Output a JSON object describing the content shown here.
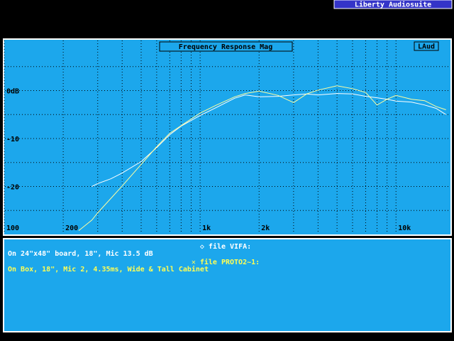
{
  "app_title": "Liberty Audiosuite",
  "chart_data": {
    "type": "line",
    "title": "Frequency Response Mag",
    "panel_tag": "LAud",
    "xscale": "log",
    "xlim": [
      100,
      18500
    ],
    "ylim": [
      -30,
      10
    ],
    "xticks": [
      100,
      200,
      {
        "value": 1000,
        "label": "1k"
      },
      {
        "value": 2000,
        "label": "2k"
      },
      {
        "value": 10000,
        "label": "10k"
      }
    ],
    "x_minor_ticks": [
      300,
      400,
      500,
      600,
      700,
      800,
      900,
      3000,
      4000,
      5000,
      6000,
      7000,
      8000,
      9000
    ],
    "yticks": [
      {
        "value": 0,
        "label": "0dB"
      },
      -10,
      -20
    ],
    "y_minor_ticks": [
      5,
      -5,
      -15,
      -25
    ],
    "grid": true,
    "background": "#1ca7ec",
    "x": [
      240,
      280,
      300,
      350,
      400,
      500,
      600,
      700,
      800,
      1000,
      1200,
      1500,
      1700,
      2000,
      2500,
      3000,
      3500,
      4000,
      5000,
      6000,
      7000,
      8000,
      9000,
      10000,
      12000,
      14000,
      16000,
      18000
    ],
    "series": [
      {
        "name": "file VIFA:",
        "marker": "◇",
        "description": "On 24\"x48\" board, 18\", Mic 13.5 dB",
        "color": "#ffffff",
        "text_color": "#ffffff",
        "values": [
          null,
          -20,
          -19.4,
          -18.4,
          -17.2,
          -14.8,
          -11.9,
          -9.2,
          -7.4,
          -5.2,
          -3.6,
          -1.6,
          -0.9,
          -1.3,
          -1.2,
          -0.9,
          -0.7,
          -0.9,
          -0.6,
          -0.7,
          -1.2,
          -1.5,
          -1.8,
          -2.2,
          -2.4,
          -3,
          -3.7,
          -5
        ]
      },
      {
        "name": "file PROTO2~1:",
        "marker": "✕",
        "description": "On Box, 18\", Mic 2, 4.35ms, Wide & Tall Cabinet",
        "color": "#ffffa0",
        "text_color": "#ffff55",
        "values": [
          -29.2,
          -27,
          -25.5,
          -22.5,
          -19.9,
          -15.4,
          -11.7,
          -8.9,
          -7.3,
          -4.7,
          -3.1,
          -1.3,
          -0.6,
          -0.1,
          -1,
          -2.5,
          -0.7,
          0.1,
          1,
          0.4,
          -0.4,
          -3,
          -1.8,
          -1,
          -1.8,
          -2.1,
          -3.3,
          -4
        ]
      }
    ]
  }
}
